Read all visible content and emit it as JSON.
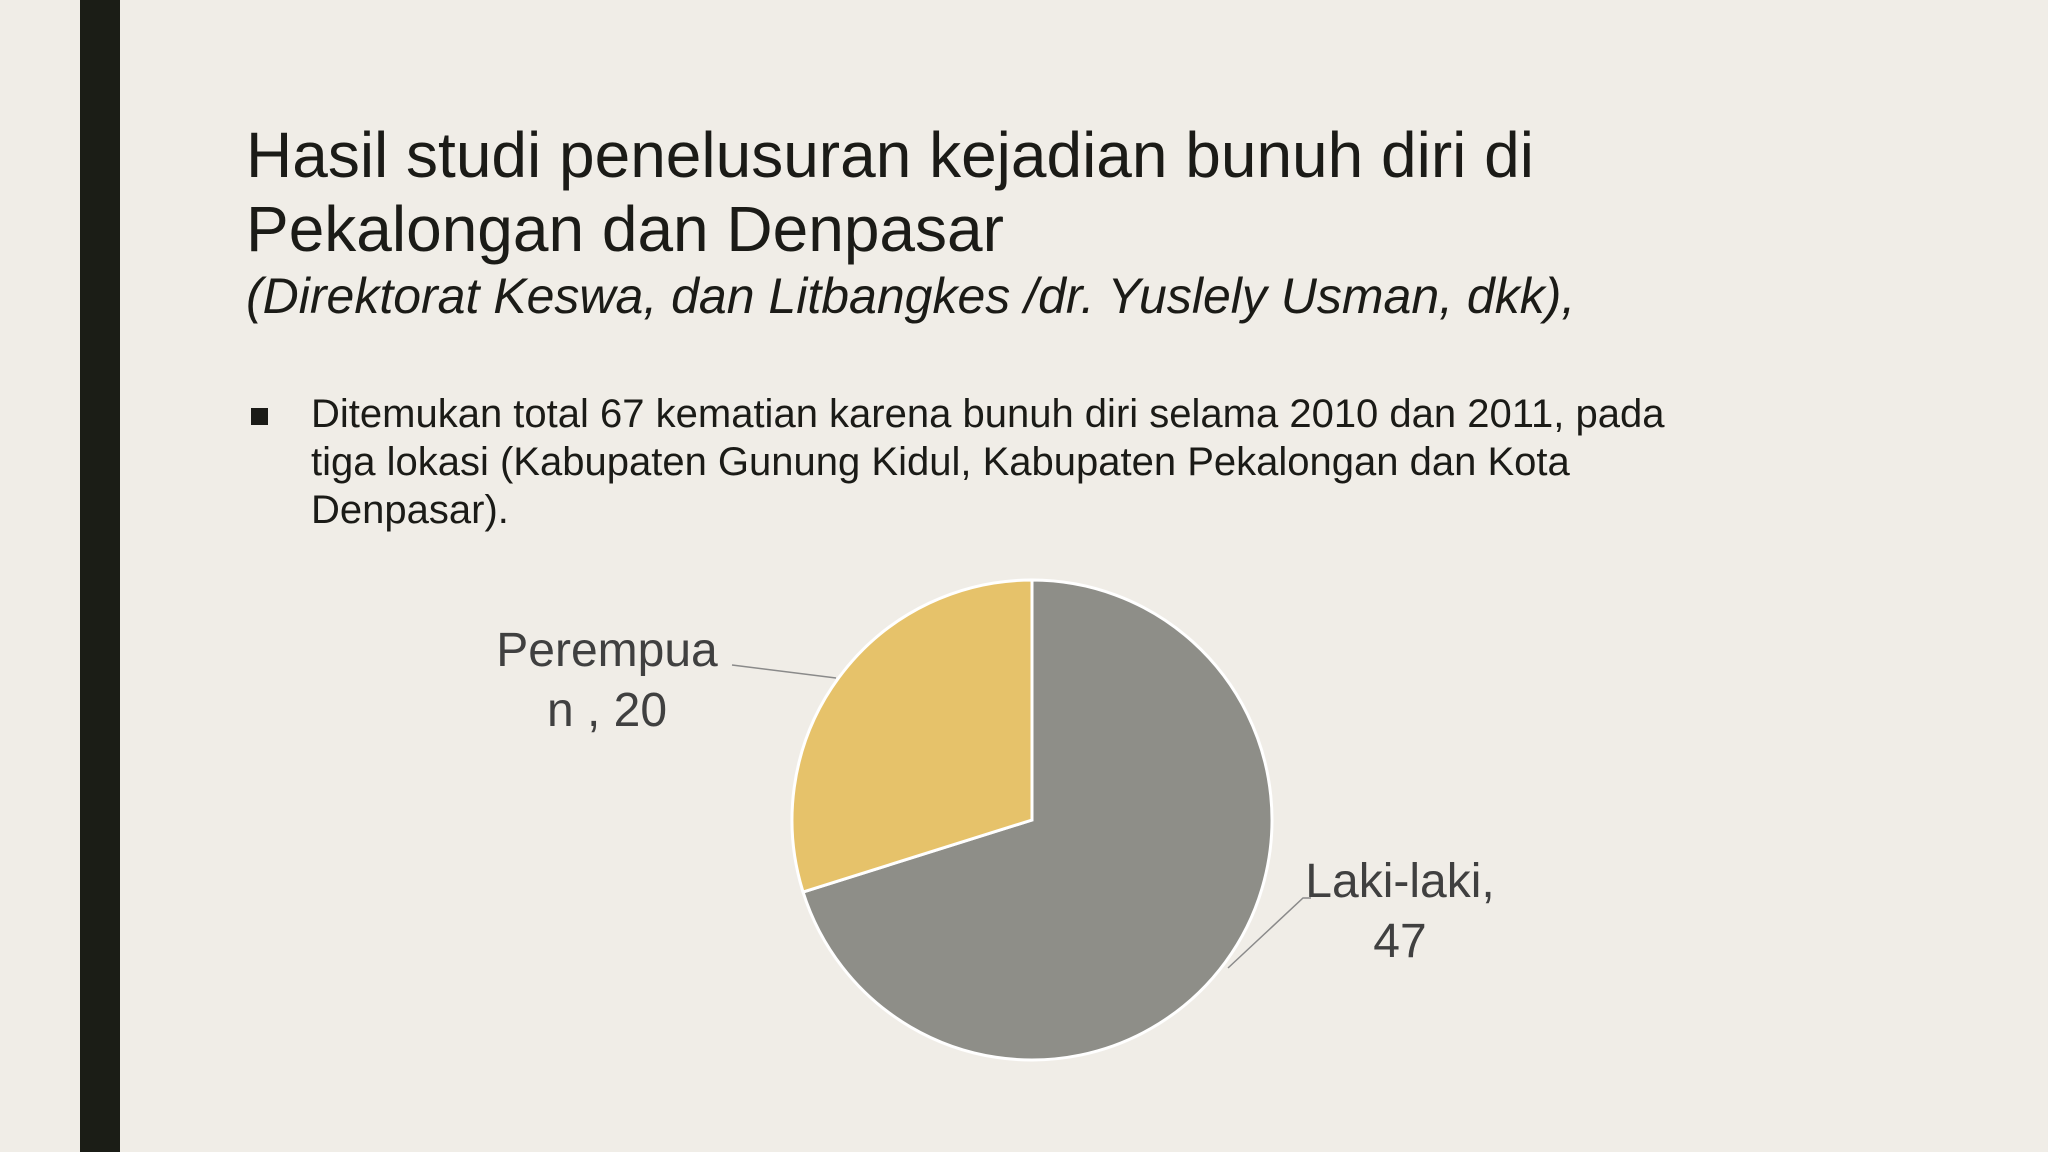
{
  "slide": {
    "title_line1": "Hasil studi penelusuran kejadian bunuh diri di",
    "title_line2": "Pekalongan dan Denpasar",
    "subtitle": "(Direktorat Keswa, dan Litbangkes /dr. Yuslely Usman, dkk),",
    "bullets": [
      {
        "lines": [
          "Ditemukan total 67 kematian karena bunuh diri selama 2010 dan 2011, pada",
          "tiga lokasi (Kabupaten Gunung Kidul, Kabupaten Pekalongan dan Kota",
          "Denpasar)."
        ]
      }
    ]
  },
  "colors": {
    "background": "#f0ede7",
    "side_bar": "#1b1d16",
    "laki_laki": "#8e8e88",
    "perempuan": "#e6c26a"
  },
  "chart_data": {
    "type": "pie",
    "slices": [
      {
        "label": "Laki-laki",
        "value": 47,
        "label_lines": [
          "Laki-laki,",
          "47"
        ],
        "color": "#8e8e88"
      },
      {
        "label": "Perempuan",
        "value": 20,
        "label_lines": [
          "Perempua",
          "n , 20"
        ],
        "color": "#e6c26a"
      }
    ],
    "start": "12 o'clock, clockwise",
    "data_labels": "outside with leader lines",
    "legend": "none"
  }
}
